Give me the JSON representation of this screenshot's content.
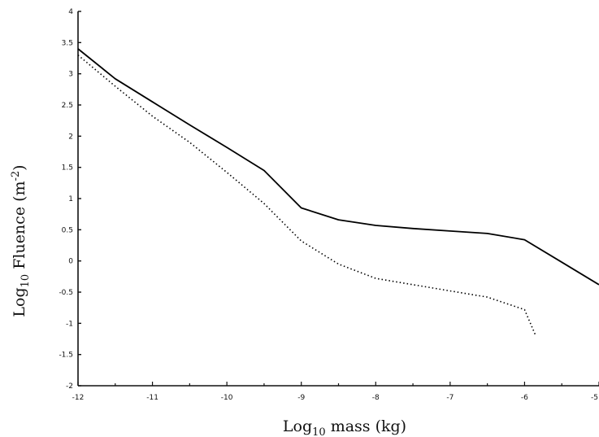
{
  "chart_data": {
    "type": "line",
    "xlabel": {
      "prefix": "Log",
      "sub": "10",
      "rest": " mass (kg)"
    },
    "ylabel": {
      "prefix": "Log",
      "sub": "10",
      "rest": " Fluence (m",
      "sup": "-2",
      "end": ")"
    },
    "xlim": [
      -12,
      -5
    ],
    "ylim": [
      -2,
      4
    ],
    "xticks": [
      {
        "v": -12,
        "label": "-12"
      },
      {
        "v": -11,
        "label": "-11"
      },
      {
        "v": -10,
        "label": "-10"
      },
      {
        "v": -9,
        "label": "-9"
      },
      {
        "v": -8,
        "label": "-8"
      },
      {
        "v": -7,
        "label": "-7"
      },
      {
        "v": -6,
        "label": "-6"
      },
      {
        "v": -5,
        "label": "-5"
      }
    ],
    "yticks": [
      {
        "v": 4,
        "label": "4"
      },
      {
        "v": 3.5,
        "label": "3.5"
      },
      {
        "v": 3,
        "label": "3"
      },
      {
        "v": 2.5,
        "label": "2.5"
      },
      {
        "v": 2,
        "label": "2"
      },
      {
        "v": 1.5,
        "label": "1.5"
      },
      {
        "v": 1,
        "label": "1"
      },
      {
        "v": 0.5,
        "label": "0.5"
      },
      {
        "v": 0,
        "label": "0"
      },
      {
        "v": -0.5,
        "label": "-0.5"
      },
      {
        "v": -1,
        "label": "-1"
      },
      {
        "v": -1.5,
        "label": "-1.5"
      },
      {
        "v": -2,
        "label": "-2"
      }
    ],
    "grid": false,
    "series": [
      {
        "style": "solid",
        "color": "#000000",
        "points": [
          [
            -12,
            3.4
          ],
          [
            -11.5,
            2.92
          ],
          [
            -11,
            2.55
          ],
          [
            -10.5,
            2.18
          ],
          [
            -10,
            1.82
          ],
          [
            -9.5,
            1.45
          ],
          [
            -9,
            0.85
          ],
          [
            -8.5,
            0.66
          ],
          [
            -8,
            0.57
          ],
          [
            -7.5,
            0.52
          ],
          [
            -7,
            0.48
          ],
          [
            -6.5,
            0.44
          ],
          [
            -6,
            0.34
          ],
          [
            -5.5,
            -0.02
          ],
          [
            -5,
            -0.38
          ]
        ]
      },
      {
        "style": "dotted",
        "color": "#000000",
        "points": [
          [
            -12,
            3.3
          ],
          [
            -11.5,
            2.8
          ],
          [
            -11,
            2.32
          ],
          [
            -10.5,
            1.9
          ],
          [
            -10,
            1.42
          ],
          [
            -9.5,
            0.92
          ],
          [
            -9,
            0.32
          ],
          [
            -8.5,
            -0.05
          ],
          [
            -8,
            -0.28
          ],
          [
            -7.5,
            -0.38
          ],
          [
            -7,
            -0.48
          ],
          [
            -6.5,
            -0.58
          ],
          [
            -6,
            -0.78
          ],
          [
            -5.85,
            -1.2
          ]
        ]
      }
    ]
  }
}
